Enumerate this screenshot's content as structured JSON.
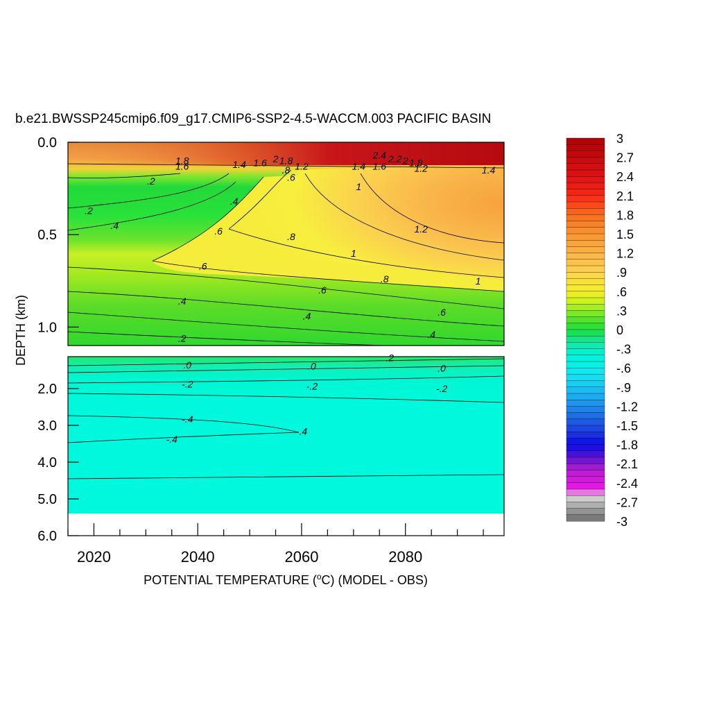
{
  "chart_data": {
    "type": "heatmap",
    "title": "b.e21.BWSSP245cmip6.f09_g17.CMIP6-SSP2-4.5-WACCM.003 PACIFIC BASIN",
    "ylabel": "DEPTH (km)",
    "xlabel_parts": [
      "POTENTIAL TEMPERATURE (",
      "o",
      "C) (MODEL - OBS)"
    ],
    "x_range": [
      2015,
      2099
    ],
    "x_ticks": [
      "2020",
      "2040",
      "2060",
      "2080"
    ],
    "upper_panel": {
      "y_range": [
        0.0,
        1.1
      ],
      "y_ticks": [
        "0.0",
        "0.5",
        "1.0"
      ],
      "y_tick_values": [
        0.0,
        0.5,
        1.0
      ]
    },
    "lower_panel": {
      "y_range": [
        1.1,
        6.0
      ],
      "y_ticks": [
        "2.0",
        "3.0",
        "4.0",
        "5.0",
        "6.0"
      ],
      "y_tick_values": [
        2.0,
        3.0,
        4.0,
        5.0,
        6.0
      ],
      "data_bottom_depth": 5.4
    },
    "colorbar": {
      "min": -3.0,
      "max": 3.0,
      "step": 0.1,
      "labels": [
        "3",
        "2.7",
        "2.4",
        "2.1",
        "1.8",
        "1.5",
        "1.2",
        ".9",
        ".6",
        ".3",
        "0",
        "-.3",
        "-.6",
        "-.9",
        "-1.2",
        "-1.5",
        "-1.8",
        "-2.1",
        "-2.4",
        "-2.7",
        "-3"
      ],
      "label_values": [
        3,
        2.7,
        2.4,
        2.1,
        1.8,
        1.5,
        1.2,
        0.9,
        0.6,
        0.3,
        0,
        -0.3,
        -0.6,
        -0.9,
        -1.2,
        -1.5,
        -1.8,
        -2.1,
        -2.4,
        -2.7,
        -3
      ]
    },
    "contour_labels_upper": [
      {
        "text": "1.8",
        "year": 2037,
        "depth": 0.1
      },
      {
        "text": "1.6",
        "year": 2037,
        "depth": 0.13
      },
      {
        "text": ".2",
        "year": 2031,
        "depth": 0.21
      },
      {
        "text": "1.4",
        "year": 2048,
        "depth": 0.12
      },
      {
        "text": "1.6",
        "year": 2052,
        "depth": 0.11
      },
      {
        "text": "2",
        "year": 2055,
        "depth": 0.09
      },
      {
        "text": "1.8",
        "year": 2057,
        "depth": 0.1
      },
      {
        "text": "1.2",
        "year": 2060,
        "depth": 0.13
      },
      {
        "text": ".8",
        "year": 2057,
        "depth": 0.15
      },
      {
        "text": "2.4",
        "year": 2075,
        "depth": 0.07
      },
      {
        "text": "2.2",
        "year": 2078,
        "depth": 0.09
      },
      {
        "text": "2",
        "year": 2080,
        "depth": 0.1
      },
      {
        "text": "1.8",
        "year": 2082,
        "depth": 0.11
      },
      {
        "text": "1.4",
        "year": 2071,
        "depth": 0.13
      },
      {
        "text": "1.6",
        "year": 2075,
        "depth": 0.13
      },
      {
        "text": "1.2",
        "year": 2083,
        "depth": 0.14
      },
      {
        "text": "1.4",
        "year": 2096,
        "depth": 0.15
      },
      {
        "text": ".6",
        "year": 2058,
        "depth": 0.19
      },
      {
        "text": "1",
        "year": 2071,
        "depth": 0.24
      },
      {
        "text": ".4",
        "year": 2047,
        "depth": 0.32
      },
      {
        "text": ".2",
        "year": 2019,
        "depth": 0.37
      },
      {
        "text": ".4",
        "year": 2024,
        "depth": 0.45
      },
      {
        "text": ".6",
        "year": 2044,
        "depth": 0.48
      },
      {
        "text": ".8",
        "year": 2058,
        "depth": 0.51
      },
      {
        "text": "1.2",
        "year": 2083,
        "depth": 0.47
      },
      {
        "text": "1",
        "year": 2070,
        "depth": 0.6
      },
      {
        "text": ".6",
        "year": 2041,
        "depth": 0.67
      },
      {
        "text": ".8",
        "year": 2076,
        "depth": 0.74
      },
      {
        "text": "1",
        "year": 2094,
        "depth": 0.75
      },
      {
        "text": ".6",
        "year": 2064,
        "depth": 0.8
      },
      {
        "text": ".4",
        "year": 2037,
        "depth": 0.86
      },
      {
        "text": ".6",
        "year": 2087,
        "depth": 0.92
      },
      {
        "text": ".4",
        "year": 2061,
        "depth": 0.94
      },
      {
        "text": ".4",
        "year": 2085,
        "depth": 1.04
      },
      {
        "text": ".2",
        "year": 2037,
        "depth": 1.06
      }
    ],
    "contour_labels_lower": [
      {
        "text": ".2",
        "year": 2077,
        "depth": 1.13
      },
      {
        "text": ".0",
        "year": 2038,
        "depth": 1.33
      },
      {
        "text": ".0",
        "year": 2062,
        "depth": 1.36
      },
      {
        "text": ".0",
        "year": 2087,
        "depth": 1.42
      },
      {
        "text": "-.2",
        "year": 2038,
        "depth": 1.87
      },
      {
        "text": "-.2",
        "year": 2062,
        "depth": 1.93
      },
      {
        "text": "-.2",
        "year": 2087,
        "depth": 2.0
      },
      {
        "text": "-.4",
        "year": 2038,
        "depth": 2.83
      },
      {
        "text": "-.4",
        "year": 2060,
        "depth": 3.16
      },
      {
        "text": "-.4",
        "year": 2035,
        "depth": 3.38
      }
    ]
  }
}
